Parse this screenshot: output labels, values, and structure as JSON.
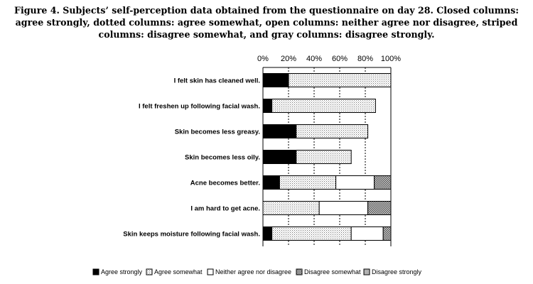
{
  "caption": "Figure 4. Subjects’ self-perception data obtained from the questionnaire on day 28. Closed columns: agree strongly, dotted columns: agree somewhat, open columns: neither agree nor disagree, striped columns: disagree somewhat, and gray columns: disagree strongly.",
  "chart_data": {
    "type": "bar",
    "orientation": "horizontal",
    "stacked": true,
    "title": "",
    "xlabel": "",
    "ylabel": "",
    "xlim": [
      0,
      100
    ],
    "x_ticks": [
      "0%",
      "20%",
      "40%",
      "60%",
      "80%",
      "100%"
    ],
    "x_axis_position": "top",
    "grid": true,
    "legend_position": "bottom",
    "categories": [
      "I felt skin has cleaned well.",
      "I felt freshen up following facial wash.",
      "Skin becomes less greasy.",
      "Skin becomes less oily.",
      "Acne becomes better.",
      "I am hard to get acne.",
      "Skin keeps moisture following facial wash."
    ],
    "series": [
      {
        "name": "Agree strongly",
        "color": "#000000",
        "pattern": "solid",
        "values": [
          20,
          7,
          26,
          26,
          13,
          0,
          7
        ]
      },
      {
        "name": "Agree somewhat",
        "color": "#d9d9d9",
        "pattern": "dotted",
        "values": [
          80,
          81,
          56,
          43,
          44,
          44,
          62
        ]
      },
      {
        "name": "Neither agree nor disagree",
        "color": "#ffffff",
        "pattern": "open",
        "values": [
          0,
          0,
          0,
          0,
          30,
          38,
          25
        ]
      },
      {
        "name": "Disagree somewhat",
        "color": "#999999",
        "pattern": "checked",
        "values": [
          0,
          0,
          0,
          0,
          13,
          18,
          6
        ]
      },
      {
        "name": "Disagree strongly",
        "color": "#b3b3b3",
        "pattern": "gray",
        "values": [
          0,
          0,
          0,
          0,
          0,
          0,
          0
        ]
      }
    ]
  }
}
